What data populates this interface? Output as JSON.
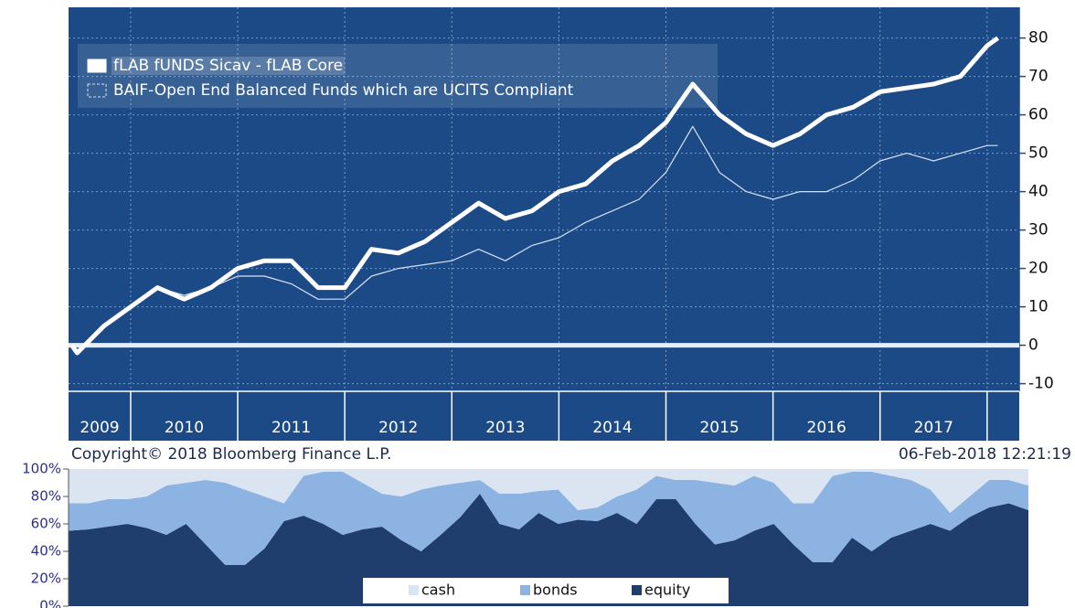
{
  "chart_data": [
    {
      "type": "line",
      "x": [
        2009.45,
        2009.5,
        2009.75,
        2010.0,
        2010.25,
        2010.5,
        2010.75,
        2011.0,
        2011.25,
        2011.5,
        2011.75,
        2012.0,
        2012.25,
        2012.5,
        2012.75,
        2013.0,
        2013.25,
        2013.5,
        2013.75,
        2014.0,
        2014.25,
        2014.5,
        2014.75,
        2015.0,
        2015.25,
        2015.5,
        2015.75,
        2016.0,
        2016.25,
        2016.5,
        2016.75,
        2017.0,
        2017.25,
        2017.5,
        2017.75,
        2018.0,
        2018.1
      ],
      "xlim": [
        2009.42,
        2018.3
      ],
      "xticks": [
        2010,
        2011,
        2012,
        2013,
        2014,
        2015,
        2016,
        2017,
        2018
      ],
      "categories": [
        "2009",
        "2010",
        "2011",
        "2012",
        "2013",
        "2014",
        "2015",
        "2016",
        "2017"
      ],
      "series": [
        {
          "name": "fLAB fUNDS Sicav - fLAB Core",
          "color": "#ffffff",
          "values": [
            0,
            -2,
            5,
            10,
            15,
            12,
            15,
            20,
            22,
            22,
            15,
            15,
            25,
            24,
            27,
            32,
            37,
            33,
            35,
            40,
            42,
            48,
            52,
            58,
            68,
            60,
            55,
            52,
            55,
            60,
            62,
            66,
            67,
            68,
            70,
            78,
            80
          ]
        },
        {
          "name": "BAIF-Open End Balanced Funds which are UCITS Compliant",
          "color": "#d6e2f3",
          "values": [
            0,
            -2,
            5,
            10,
            15,
            13,
            15,
            18,
            18,
            16,
            12,
            12,
            18,
            20,
            21,
            22,
            25,
            22,
            26,
            28,
            32,
            35,
            38,
            45,
            57,
            45,
            40,
            38,
            40,
            40,
            43,
            48,
            50,
            48,
            50,
            52,
            52
          ]
        }
      ],
      "ylim": [
        -12,
        88
      ],
      "yticks": [
        80,
        70,
        60,
        50,
        40,
        30,
        20,
        10,
        0,
        -10
      ],
      "grid": true,
      "zero_line": true,
      "legend": "upper left",
      "background": "#1c4a86",
      "footer_left": "Copyright© 2018 Bloomberg Finance L.P.",
      "footer_right": "06-Feb-2018 12:21:19"
    },
    {
      "type": "stacked_area",
      "series": [
        {
          "name": "equity",
          "color": "#1f3d6d",
          "values": [
            55,
            56,
            58,
            60,
            57,
            52,
            60,
            45,
            30,
            30,
            42,
            62,
            66,
            60,
            52,
            56,
            58,
            48,
            40,
            52,
            65,
            82,
            60,
            56,
            68,
            60,
            63,
            62,
            68,
            60,
            78,
            78,
            60,
            45,
            48,
            55,
            60,
            45,
            32,
            32,
            50,
            40,
            50,
            55,
            60,
            55,
            65,
            72,
            75,
            70
          ]
        },
        {
          "name": "bonds",
          "color": "#8db3e2",
          "values": [
            20,
            19,
            20,
            18,
            23,
            36,
            30,
            47,
            60,
            55,
            38,
            13,
            29,
            38,
            46,
            34,
            24,
            32,
            45,
            36,
            25,
            10,
            22,
            26,
            16,
            25,
            7,
            10,
            12,
            25,
            17,
            14,
            32,
            45,
            40,
            40,
            30,
            30,
            43,
            63,
            48,
            58,
            45,
            37,
            25,
            13,
            15,
            20,
            17,
            18
          ]
        },
        {
          "name": "cash",
          "color": "#dbe5f1",
          "values": [
            25,
            25,
            22,
            22,
            20,
            12,
            10,
            8,
            10,
            15,
            20,
            25,
            5,
            2,
            2,
            10,
            18,
            20,
            15,
            12,
            10,
            8,
            18,
            18,
            16,
            15,
            30,
            28,
            20,
            15,
            5,
            8,
            8,
            10,
            12,
            5,
            10,
            25,
            25,
            5,
            2,
            2,
            5,
            8,
            15,
            32,
            20,
            8,
            8,
            12
          ]
        }
      ],
      "ylim": [
        0,
        100
      ],
      "yticks": [
        {
          "value": 0,
          "label": "0%"
        },
        {
          "value": 20,
          "label": "20%"
        },
        {
          "value": 40,
          "label": "40%"
        },
        {
          "value": 60,
          "label": "60%"
        },
        {
          "value": 80,
          "label": "80%"
        },
        {
          "value": 100,
          "label": "100%"
        }
      ],
      "legend": "lower center"
    }
  ]
}
